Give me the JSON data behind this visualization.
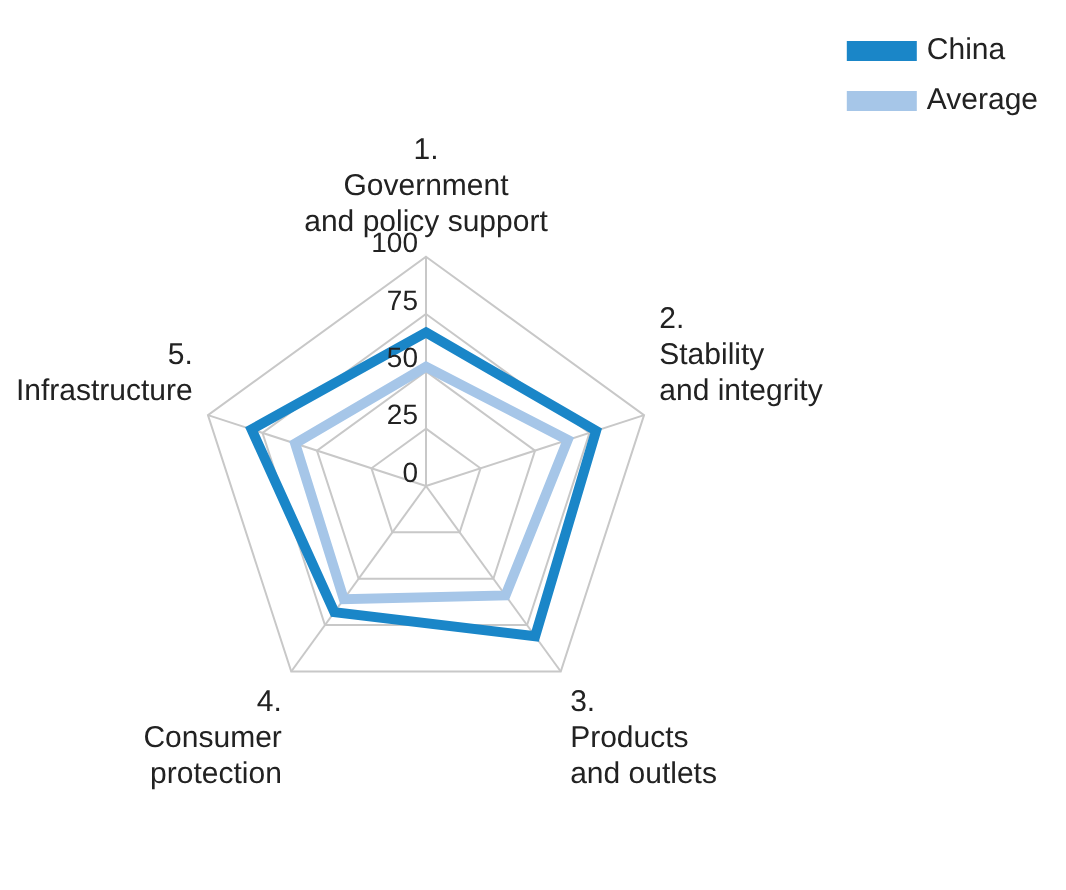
{
  "chart_data": {
    "type": "radar",
    "categories": [
      "1.\nGovernment\nand policy support",
      "2.\nStability\nand integrity",
      "3.\nProducts\nand outlets",
      "4.\nConsumer\nprotection",
      "5.\nInfrastructure"
    ],
    "series": [
      {
        "name": "China",
        "color": "#1a86c8",
        "values": [
          67,
          78,
          81,
          68,
          80
        ]
      },
      {
        "name": "Average",
        "color": "#a6c6e8",
        "values": [
          52,
          65,
          59,
          61,
          60
        ]
      }
    ],
    "ylim": [
      0,
      100
    ],
    "yticks": [
      0,
      25,
      50,
      75,
      100
    ],
    "grid": true,
    "legend": "top right",
    "marker": "none"
  }
}
